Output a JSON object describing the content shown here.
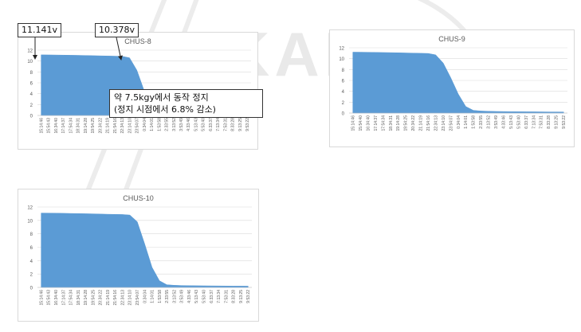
{
  "watermark": {
    "text": "KAERI"
  },
  "annotations": {
    "voltage_start": "11.141v",
    "voltage_stop": "10.378v",
    "note_line1": "약 7.5kgy에서 동작 정지",
    "note_line2": "(정지 시점에서 6.8% 감소)"
  },
  "colors": {
    "fill": "#5b9bd5",
    "grid": "#d9d9d9",
    "axis_text": "#595959",
    "title": "#595959"
  },
  "chart_data": [
    {
      "type": "area",
      "title": "CHUS-8",
      "ylim": [
        0,
        12
      ],
      "yticks": [
        0,
        2,
        4,
        6,
        8,
        10,
        12
      ],
      "grid": true,
      "x": [
        "15:14:46",
        "15:54:43",
        "16:34:40",
        "17:14:37",
        "17:54:34",
        "18:34:31",
        "19:14:28",
        "19:54:25",
        "20:34:22",
        "21:14:19",
        "21:54:16",
        "22:34:13",
        "23:14:10",
        "23:54:07",
        "0:34:04",
        "1:14:01",
        "1:53:58",
        "2:33:55",
        "3:13:52",
        "3:53:49",
        "4:33:46",
        "5:13:43",
        "5:53:40",
        "6:33:37",
        "7:13:34",
        "7:53:31",
        "8:33:28",
        "9:13:25",
        "9:53:22"
      ],
      "values": [
        11.14,
        11.13,
        11.11,
        11.09,
        11.07,
        11.05,
        11.02,
        10.99,
        10.96,
        10.93,
        10.9,
        10.87,
        10.6,
        8.3,
        4.5,
        1.5,
        0.5,
        0.35,
        0.3,
        0.28,
        0.26,
        0.25,
        0.24,
        0.23,
        0.22,
        0.21,
        0.2,
        0.2,
        0.19
      ]
    },
    {
      "type": "area",
      "title": "CHUS-9",
      "ylim": [
        0,
        12
      ],
      "yticks": [
        0,
        2,
        4,
        6,
        8,
        10,
        12
      ],
      "grid": true,
      "x": [
        "15:14:46",
        "15:54:40",
        "16:34:40",
        "17:14:37",
        "17:54:34",
        "18:34:31",
        "19:14:28",
        "19:54:25",
        "20:34:22",
        "21:14:19",
        "21:54:16",
        "22:34:13",
        "23:14:10",
        "23:54:07",
        "0:34:04",
        "1:14:01",
        "1:53:58",
        "2:33:55",
        "3:13:52",
        "3:53:49",
        "4:33:46",
        "5:13:43",
        "5:53:40",
        "6:33:37",
        "7:13:34",
        "7:53:31",
        "8:33:28",
        "9:13:25",
        "9:53:22"
      ],
      "values": [
        11.2,
        11.19,
        11.17,
        11.15,
        11.13,
        11.11,
        11.08,
        11.05,
        11.02,
        10.99,
        10.96,
        10.7,
        9.2,
        6.5,
        3.5,
        1.2,
        0.5,
        0.38,
        0.33,
        0.3,
        0.28,
        0.26,
        0.25,
        0.24,
        0.23,
        0.22,
        0.21,
        0.21,
        0.2
      ]
    },
    {
      "type": "area",
      "title": "CHUS-10",
      "ylim": [
        0,
        12
      ],
      "yticks": [
        0,
        2,
        4,
        6,
        8,
        10,
        12
      ],
      "grid": true,
      "x": [
        "15:14:46",
        "15:54:43",
        "16:34:40",
        "17:14:37",
        "17:54:34",
        "18:34:31",
        "19:14:28",
        "19:54:25",
        "20:34:22",
        "21:14:19",
        "21:54:16",
        "22:34:13",
        "23:14:10",
        "23:54:07",
        "0:34:04",
        "1:14:01",
        "1:53:58",
        "2:33:55",
        "3:13:52",
        "3:53:49",
        "4:33:46",
        "5:13:43",
        "5:53:40",
        "6:33:37",
        "7:13:34",
        "7:53:31",
        "8:33:28",
        "9:13:25",
        "9:53:22"
      ],
      "values": [
        11.1,
        11.09,
        11.08,
        11.06,
        11.04,
        11.02,
        11.0,
        10.98,
        10.95,
        10.92,
        10.9,
        10.88,
        10.8,
        9.8,
        6.5,
        3.0,
        1.0,
        0.4,
        0.32,
        0.28,
        0.26,
        0.25,
        0.24,
        0.23,
        0.22,
        0.21,
        0.2,
        0.2,
        0.19
      ]
    }
  ]
}
